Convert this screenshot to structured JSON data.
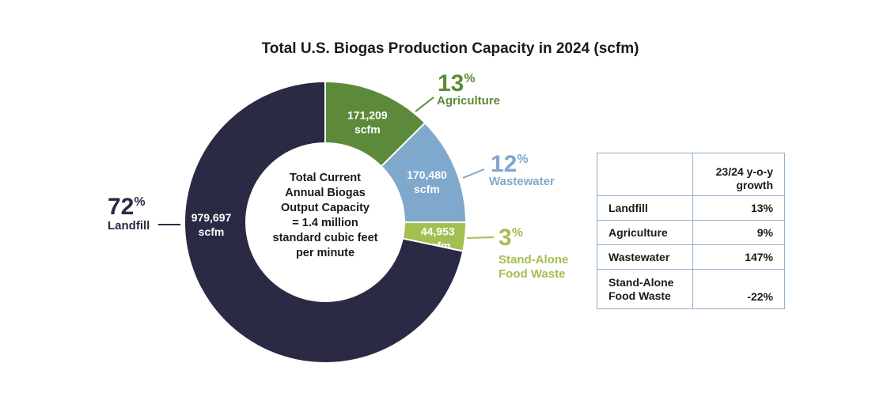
{
  "chart_data": {
    "type": "pie",
    "style": "donut",
    "title": "Total U.S. Biogas Production Capacity in 2024 (scfm)",
    "unit": "scfm",
    "center_text": [
      "Total Current",
      "Annual Biogas",
      "Output Capacity",
      "= 1.4 million",
      "standard cubic feet",
      "per minute"
    ],
    "slices": [
      {
        "name": "Agriculture",
        "name_lines": [
          "Agriculture"
        ],
        "value": 171209,
        "value_label": "171,209",
        "unit_label": "scfm",
        "percent": 13,
        "color": "#5c8a3a"
      },
      {
        "name": "Wastewater",
        "name_lines": [
          "Wastewater"
        ],
        "value": 170480,
        "value_label": "170,480",
        "unit_label": "scfm",
        "percent": 12,
        "color": "#7fa8cd"
      },
      {
        "name": "Stand-Alone Food Waste",
        "name_lines": [
          "Stand-Alone",
          "Food Waste"
        ],
        "value": 44953,
        "value_label": "44,953",
        "unit_label": "scfm",
        "percent": 3,
        "color": "#a3bf52"
      },
      {
        "name": "Landfill",
        "name_lines": [
          "Landfill"
        ],
        "value": 979697,
        "value_label": "979,697",
        "unit_label": "scfm",
        "percent": 72,
        "color": "#2b2a45"
      }
    ],
    "percent_symbol": "%"
  },
  "table": {
    "header": [
      "",
      "23/24 y-o-y growth"
    ],
    "rows": [
      {
        "category": "Landfill",
        "growth": "13%"
      },
      {
        "category": "Agriculture",
        "growth": "9%"
      },
      {
        "category": "Wastewater",
        "growth": "147%"
      },
      {
        "category": "Stand-Alone Food Waste",
        "growth": "-22%"
      }
    ]
  }
}
